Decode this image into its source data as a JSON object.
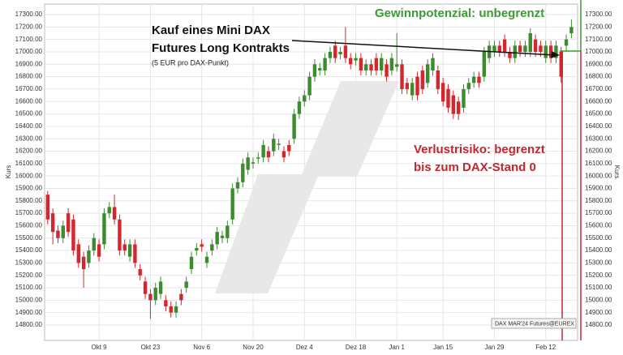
{
  "chart_data": {
    "type": "candlestick",
    "y_label": "Kurs",
    "annotations": [
      "Kauf eines Mini DAX",
      "Futures Long Kontrakts",
      "(5 EUR pro DAX-Punkt)",
      "Gewinnpotenzial: unbegrenzt",
      "Verlustrisiko: begrenzt",
      "bis zum DAX-Stand 0"
    ],
    "source": "DAX MAR'24 Futures@EUREX",
    "up_color": "#3d8b2f",
    "down_color": "#d5262e",
    "grid": true,
    "xlim": [
      -0.6,
      103.2
    ],
    "ylim": [
      14676,
      17385
    ],
    "xticks": [
      {
        "value": 10,
        "label": "Okt 9"
      },
      {
        "value": 20,
        "label": "Okt 23"
      },
      {
        "value": 30,
        "label": "Nov 6"
      },
      {
        "value": 40,
        "label": "Nov 20"
      },
      {
        "value": 50,
        "label": "Dez 4"
      },
      {
        "value": 60,
        "label": "Dez 18"
      },
      {
        "value": 68,
        "label": "Jan 1"
      },
      {
        "value": 77,
        "label": "Jan 15"
      },
      {
        "value": 87,
        "label": "Jan 29"
      },
      {
        "value": 97,
        "label": "Feb 12"
      }
    ],
    "yticks": [
      {
        "value": 14800,
        "label": "14800.00"
      },
      {
        "value": 14900,
        "label": "14900.00"
      },
      {
        "value": 15000,
        "label": "15000.00"
      },
      {
        "value": 15100,
        "label": "15100.00"
      },
      {
        "value": 15200,
        "label": "15200.00"
      },
      {
        "value": 15300,
        "label": "15300.00"
      },
      {
        "value": 15400,
        "label": "15400.00"
      },
      {
        "value": 15500,
        "label": "15500.00"
      },
      {
        "value": 15600,
        "label": "15600.00"
      },
      {
        "value": 15700,
        "label": "15700.00"
      },
      {
        "value": 15800,
        "label": "15800.00"
      },
      {
        "value": 15900,
        "label": "15900.00"
      },
      {
        "value": 16000,
        "label": "16000.00"
      },
      {
        "value": 16100,
        "label": "16100.00"
      },
      {
        "value": 16200,
        "label": "16200.00"
      },
      {
        "value": 16300,
        "label": "16300.00"
      },
      {
        "value": 16400,
        "label": "16400.00"
      },
      {
        "value": 16500,
        "label": "16500.00"
      },
      {
        "value": 16600,
        "label": "16600.00"
      },
      {
        "value": 16700,
        "label": "16700.00"
      },
      {
        "value": 16800,
        "label": "16800.00"
      },
      {
        "value": 16900,
        "label": "16900.00"
      },
      {
        "value": 17000,
        "label": "17000.00"
      },
      {
        "value": 17100,
        "label": "17100.00"
      },
      {
        "value": 17200,
        "label": "17200.00"
      },
      {
        "value": 17300,
        "label": "17300.00"
      }
    ],
    "open": [
      15850,
      15700,
      15560,
      15500,
      15700,
      15650,
      15450,
      15350,
      15300,
      15400,
      15450,
      15450,
      15700,
      15750,
      15650,
      15450,
      15350,
      15450,
      15250,
      15150,
      15050,
      15000,
      15050,
      15000,
      14950,
      14900,
      15050,
      15100,
      15250,
      15400,
      15450,
      15300,
      15400,
      15450,
      15500,
      15500,
      15650,
      15900,
      15950,
      16050,
      16100,
      16140,
      16150,
      16200,
      16200,
      16250,
      16200,
      16250,
      16300,
      16500,
      16600,
      16650,
      16800,
      16850,
      16850,
      16950,
      17050,
      16980,
      17050,
      16950,
      16930,
      16950,
      16850,
      16900,
      16950,
      16850,
      16900,
      16850,
      16880,
      16900,
      16750,
      16650,
      16800,
      16850,
      16750,
      16850,
      16850,
      16750,
      16700,
      16650,
      16600,
      16550,
      16700,
      16750,
      16800,
      16800,
      16950,
      17000,
      17050,
      17100,
      17000,
      16950,
      17050,
      17000,
      17000,
      17100,
      17050,
      16950,
      17050,
      16950,
      17000,
      17050,
      17150
    ],
    "high": [
      15880,
      15740,
      15600,
      15640,
      15740,
      15690,
      15490,
      15390,
      15440,
      15540,
      15490,
      15740,
      15790,
      15850,
      15690,
      15490,
      15490,
      15490,
      15290,
      15190,
      15090,
      15140,
      15190,
      15040,
      14990,
      14990,
      15090,
      15190,
      15390,
      15460,
      15490,
      15390,
      15490,
      15590,
      15560,
      15640,
      15940,
      15990,
      16140,
      16190,
      16150,
      16190,
      16290,
      16240,
      16340,
      16300,
      16240,
      16290,
      16540,
      16640,
      16690,
      16840,
      16940,
      16910,
      16990,
      17040,
      17090,
      17040,
      17200,
      16990,
      16990,
      16990,
      16940,
      16940,
      16990,
      16990,
      16940,
      16990,
      17150,
      16940,
      16790,
      16790,
      16840,
      16890,
      16940,
      16990,
      16890,
      16790,
      16740,
      16690,
      16640,
      16740,
      16790,
      16840,
      16840,
      17040,
      17090,
      17090,
      17090,
      17140,
      17040,
      17090,
      17090,
      17090,
      17190,
      17140,
      17090,
      17090,
      17090,
      17090,
      17040,
      17140,
      17260
    ],
    "low": [
      15610,
      15450,
      15460,
      15460,
      15510,
      15360,
      15260,
      15100,
      15260,
      15360,
      15310,
      15410,
      15660,
      15610,
      15360,
      15360,
      15310,
      15260,
      15160,
      15010,
      14850,
      14960,
      15010,
      14910,
      14860,
      14860,
      14960,
      15060,
      15210,
      15360,
      15390,
      15260,
      15360,
      15410,
      15460,
      15460,
      15610,
      15860,
      15910,
      16010,
      16060,
      16100,
      16110,
      16110,
      16160,
      16210,
      16110,
      16160,
      16260,
      16460,
      16560,
      16610,
      16760,
      16810,
      16810,
      16910,
      16910,
      16940,
      16910,
      16860,
      16890,
      16810,
      16810,
      16810,
      16810,
      16810,
      16760,
      16810,
      16840,
      16660,
      16660,
      16610,
      16610,
      16660,
      16710,
      16810,
      16660,
      16560,
      16510,
      16460,
      16450,
      16510,
      16660,
      16710,
      16710,
      16760,
      16910,
      16960,
      16960,
      16960,
      16910,
      16910,
      16960,
      16960,
      16960,
      16960,
      16960,
      16910,
      16910,
      16910,
      16750,
      17010,
      17110
    ],
    "close": [
      15650,
      15550,
      15500,
      15600,
      15550,
      15400,
      15300,
      15250,
      15400,
      15500,
      15350,
      15700,
      15750,
      15650,
      15400,
      15400,
      15450,
      15300,
      15200,
      15050,
      15000,
      15100,
      15150,
      14950,
      14900,
      14950,
      15000,
      15150,
      15350,
      15420,
      15430,
      15350,
      15450,
      15550,
      15520,
      15600,
      15900,
      15950,
      16100,
      16150,
      16110,
      16150,
      16250,
      16150,
      16300,
      16260,
      16150,
      16200,
      16500,
      16600,
      16650,
      16800,
      16900,
      16870,
      16950,
      17000,
      16950,
      17000,
      16950,
      16900,
      16950,
      16850,
      16900,
      16850,
      16850,
      16950,
      16800,
      16950,
      16900,
      16700,
      16700,
      16750,
      16650,
      16700,
      16900,
      16950,
      16700,
      16600,
      16550,
      16500,
      16500,
      16700,
      16750,
      16800,
      16750,
      17000,
      17050,
      17050,
      17000,
      17000,
      16950,
      17050,
      17000,
      17050,
      17150,
      17000,
      17000,
      17050,
      16950,
      17050,
      16800,
      17100,
      17200
    ]
  }
}
